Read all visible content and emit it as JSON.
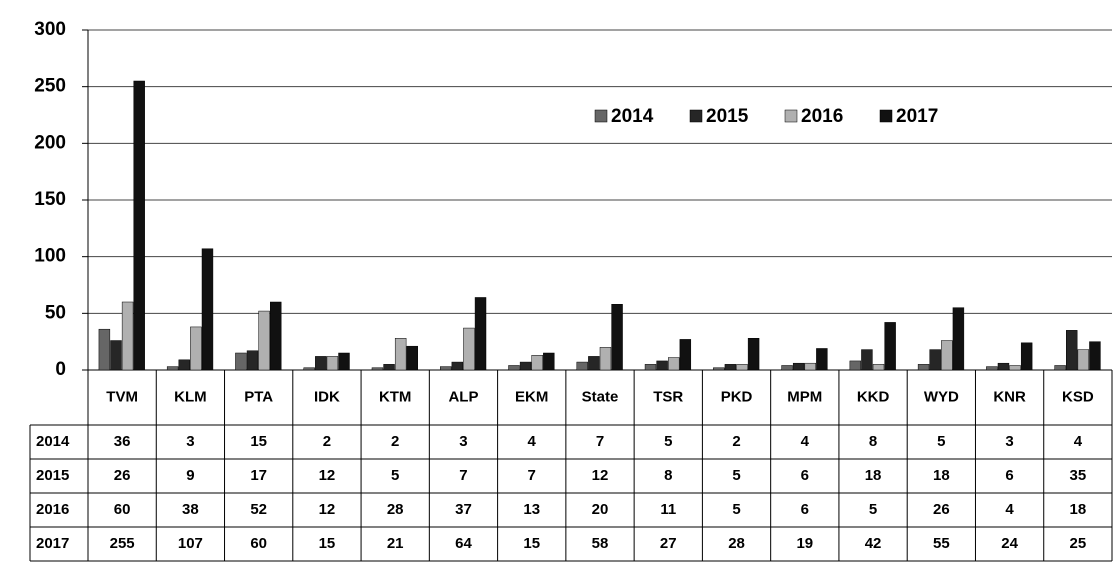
{
  "chart_data": {
    "type": "bar",
    "categories": [
      "TVM",
      "KLM",
      "PTA",
      "IDK",
      "KTM",
      "ALP",
      "EKM",
      "State",
      "TSR",
      "PKD",
      "MPM",
      "KKD",
      "WYD",
      "KNR",
      "KSD"
    ],
    "series": [
      {
        "name": "2014",
        "color": "#666666",
        "values": [
          36,
          3,
          15,
          2,
          2,
          3,
          4,
          7,
          5,
          2,
          4,
          8,
          5,
          3,
          4
        ]
      },
      {
        "name": "2015",
        "color": "#262626",
        "values": [
          26,
          9,
          17,
          12,
          5,
          7,
          7,
          12,
          8,
          5,
          6,
          18,
          18,
          6,
          35
        ]
      },
      {
        "name": "2016",
        "color": "#b0b0b0",
        "values": [
          60,
          38,
          52,
          12,
          28,
          37,
          13,
          20,
          11,
          5,
          6,
          5,
          26,
          4,
          18
        ]
      },
      {
        "name": "2017",
        "color": "#111111",
        "values": [
          255,
          107,
          60,
          15,
          21,
          64,
          15,
          58,
          27,
          28,
          19,
          42,
          55,
          24,
          25
        ]
      }
    ],
    "ylim": [
      0,
      300
    ],
    "yticks": [
      0,
      50,
      100,
      150,
      200,
      250,
      300
    ],
    "grid": true
  }
}
